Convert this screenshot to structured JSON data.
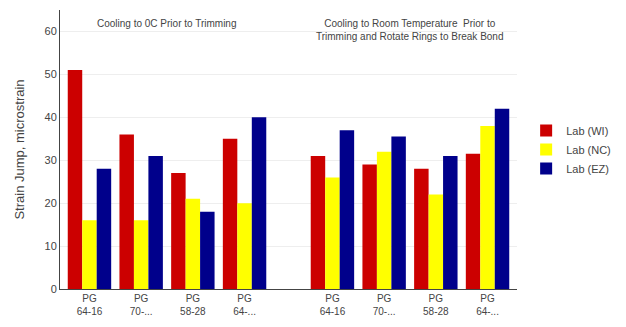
{
  "chart_data": {
    "type": "bar",
    "ylabel": "Strain Jump, microstrain",
    "annotations": [
      "Cooling to 0C Prior to Trimming",
      "Cooling to Room Temperature  Prior to\nTrimming and Rotate Rings to Break Bond"
    ],
    "categories": [
      "PG\n64-16",
      "PG\n70-...",
      "PG\n58-28",
      "PG\n64-...",
      "PG\n64-16",
      "PG\n70-...",
      "PG\n58-28",
      "PG\n64-..."
    ],
    "series": [
      {
        "name": "Lab (WI)",
        "color": "#CC0000",
        "values": [
          51,
          36,
          27,
          35,
          31,
          29,
          28,
          31.5
        ]
      },
      {
        "name": "Lab (NC)",
        "color": "#FFFF00",
        "values": [
          16,
          16,
          21,
          20,
          26,
          32,
          22,
          38
        ]
      },
      {
        "name": "Lab (EZ)",
        "color": "#00008B",
        "values": [
          28,
          31,
          18,
          40,
          37,
          35.5,
          31,
          42
        ]
      }
    ],
    "ylim": [
      0,
      65
    ],
    "yticks": [
      0,
      10,
      20,
      30,
      40,
      50,
      60
    ],
    "grid": true,
    "legend": "right"
  }
}
